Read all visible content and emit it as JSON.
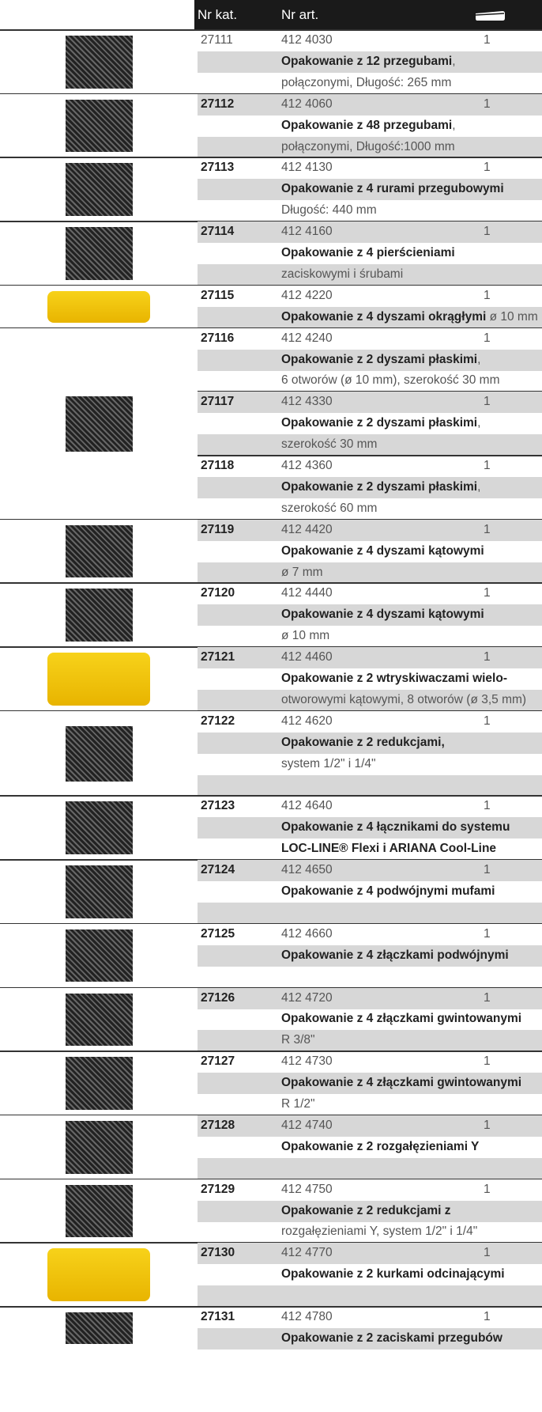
{
  "header": {
    "col1": "Nr kat.",
    "col2": "Nr art."
  },
  "products": [
    {
      "kat": "27111",
      "art": "412 4030",
      "qty": "1",
      "lines": [
        [
          {
            "text": "Opakowanie z 12 przegubami",
            "bold": true
          },
          {
            "text": ",",
            "bold": false
          }
        ],
        [
          {
            "text": "połączonymi, Długość: 265 mm",
            "bold": false
          }
        ]
      ]
    },
    {
      "kat": "27112",
      "art": "412 4060",
      "qty": "1",
      "lines": [
        [
          {
            "text": "Opakowanie z 48 przegubami",
            "bold": true
          },
          {
            "text": ",",
            "bold": false
          }
        ],
        [
          {
            "text": "połączonymi, Długość:1000 mm",
            "bold": false
          }
        ]
      ]
    },
    {
      "kat": "27113",
      "art": "412 4130",
      "qty": "1",
      "lines": [
        [
          {
            "text": "Opakowanie z 4 rurami przegubowymi",
            "bold": true
          }
        ],
        [
          {
            "text": "Długość: 440 mm",
            "bold": false
          }
        ]
      ]
    },
    {
      "kat": "27114",
      "art": "412 4160",
      "qty": "1",
      "lines": [
        [
          {
            "text": "Opakowanie z 4 pierścieniami",
            "bold": true
          }
        ],
        [
          {
            "text": "zaciskowymi i śrubami",
            "bold": false
          }
        ]
      ]
    },
    {
      "kat": "27115",
      "art": "412 4220",
      "qty": "1",
      "lines": [
        [
          {
            "text": "Opakowanie z 4 dyszami okrągłymi",
            "bold": true
          },
          {
            "text": " ø 10 mm",
            "bold": false
          }
        ]
      ]
    },
    {
      "kat": "27116",
      "art": "412 4240",
      "qty": "1",
      "lines": [
        [
          {
            "text": "Opakowanie z 2 dyszami płaskimi",
            "bold": true
          },
          {
            "text": ",",
            "bold": false
          }
        ],
        [
          {
            "text": "6 otworów (ø 10 mm), szerokość 30 mm",
            "bold": false
          }
        ]
      ]
    },
    {
      "kat": "27117",
      "art": "412 4330",
      "qty": "1",
      "lines": [
        [
          {
            "text": "Opakowanie z 2 dyszami płaskimi",
            "bold": true
          },
          {
            "text": ",",
            "bold": false
          }
        ],
        [
          {
            "text": "szerokość 30 mm",
            "bold": false
          }
        ]
      ]
    },
    {
      "kat": "27118",
      "art": "412 4360",
      "qty": "1",
      "lines": [
        [
          {
            "text": "Opakowanie z 2 dyszami płaskimi",
            "bold": true
          },
          {
            "text": ",",
            "bold": false
          }
        ],
        [
          {
            "text": "szerokość 60 mm",
            "bold": false
          }
        ]
      ]
    },
    {
      "kat": "27119",
      "art": "412 4420",
      "qty": "1",
      "lines": [
        [
          {
            "text": "Opakowanie z 4 dyszami kątowymi",
            "bold": true
          }
        ],
        [
          {
            "text": "ø 7 mm",
            "bold": false
          }
        ]
      ]
    },
    {
      "kat": "27120",
      "art": "412 4440",
      "qty": "1",
      "lines": [
        [
          {
            "text": "Opakowanie z 4 dyszami kątowymi",
            "bold": true
          }
        ],
        [
          {
            "text": "ø 10 mm",
            "bold": false
          }
        ]
      ]
    },
    {
      "kat": "27121",
      "art": "412 4460",
      "qty": "1",
      "lines": [
        [
          {
            "text": "Opakowanie z 2 wtryskiwaczami wielo-",
            "bold": true
          }
        ],
        [
          {
            "text": "otworowymi kątowymi, 8 otworów (ø 3,5 mm)",
            "bold": false
          }
        ]
      ]
    },
    {
      "kat": "27122",
      "art": "412 4620",
      "qty": "1",
      "lines": [
        [
          {
            "text": "Opakowanie z 2 redukcjami,",
            "bold": true
          }
        ],
        [
          {
            "text": "system 1/2\" i  1/4\"",
            "bold": false
          }
        ],
        []
      ]
    },
    {
      "kat": "27123",
      "art": "412 4640",
      "qty": "1",
      "lines": [
        [
          {
            "text": "Opakowanie z 4 łącznikami do systemu",
            "bold": true
          }
        ],
        [
          {
            "text": "LOC-LINE® Flexi i ARIANA Cool-Line",
            "bold": true
          }
        ]
      ]
    },
    {
      "kat": "27124",
      "art": "412 4650",
      "qty": "1",
      "lines": [
        [
          {
            "text": "Opakowanie z 4 podwójnymi mufami",
            "bold": true
          }
        ],
        []
      ]
    },
    {
      "kat": "27125",
      "art": "412 4660",
      "qty": "1",
      "lines": [
        [
          {
            "text": "Opakowanie z 4 złączkami podwójnymi",
            "bold": true
          }
        ],
        []
      ]
    },
    {
      "kat": "27126",
      "art": "412 4720",
      "qty": "1",
      "lines": [
        [
          {
            "text": "Opakowanie z 4 złączkami gwintowanymi",
            "bold": true
          }
        ],
        [
          {
            "text": "R 3/8\"",
            "bold": false
          }
        ]
      ]
    },
    {
      "kat": "27127",
      "art": "412 4730",
      "qty": "1",
      "lines": [
        [
          {
            "text": "Opakowanie z 4 złączkami gwintowanymi",
            "bold": true
          }
        ],
        [
          {
            "text": "R 1/2\"",
            "bold": false
          }
        ]
      ]
    },
    {
      "kat": "27128",
      "art": "412 4740",
      "qty": "1",
      "lines": [
        [
          {
            "text": "Opakowanie z 2 rozgałęzieniami Y",
            "bold": true
          }
        ],
        []
      ]
    },
    {
      "kat": "27129",
      "art": "412 4750",
      "qty": "1",
      "lines": [
        [
          {
            "text": "Opakowanie z 2 redukcjami z",
            "bold": true
          }
        ],
        [
          {
            "text": "rozgałęzieniami Y, system 1/2\" i  1/4\"",
            "bold": false
          }
        ]
      ]
    },
    {
      "kat": "27130",
      "art": "412 4770",
      "qty": "1",
      "lines": [
        [
          {
            "text": "Opakowanie z 2 kurkami odcinającymi",
            "bold": true
          }
        ],
        []
      ]
    },
    {
      "kat": "27131",
      "art": "412 4780",
      "qty": "1",
      "lines": [
        [
          {
            "text": "Opakowanie z 2 zaciskami przegubów",
            "bold": true
          }
        ]
      ]
    }
  ]
}
